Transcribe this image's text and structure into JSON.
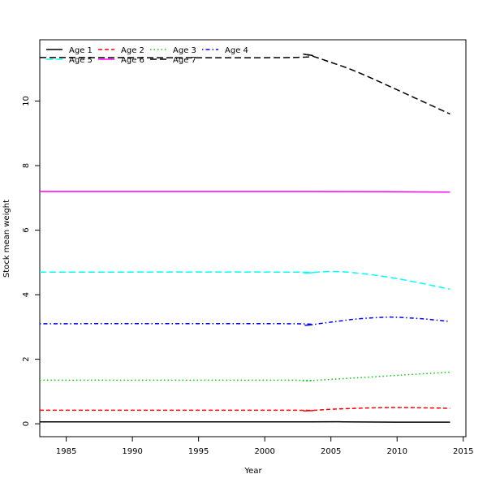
{
  "chart_data": {
    "type": "line",
    "title": "",
    "xlabel": "Year",
    "ylabel": "Stock mean weight",
    "xlim": [
      1983,
      2015
    ],
    "ylim": [
      -0.4,
      11.9
    ],
    "xticks": [
      1985,
      1990,
      1995,
      2000,
      2005,
      2010,
      2015
    ],
    "yticks": [
      0,
      2,
      4,
      6,
      8,
      10
    ],
    "grid": false,
    "legend_position": "top-left",
    "legend_columns": 4,
    "series": [
      {
        "name": "Age 1",
        "color": "#000000",
        "dash": "solid",
        "x": [
          1983,
          2003,
          2006,
          2010,
          2014
        ],
        "y": [
          0.06,
          0.06,
          0.06,
          0.05,
          0.05
        ]
      },
      {
        "name": "Age 2",
        "color": "#ff0000",
        "dash": "dashed",
        "x": [
          1983,
          2002,
          2003,
          2005,
          2007,
          2009,
          2011,
          2014
        ],
        "y": [
          0.42,
          0.42,
          0.4,
          0.45,
          0.48,
          0.5,
          0.5,
          0.48
        ]
      },
      {
        "name": "Age 3",
        "color": "#00cd00",
        "dash": "dotted",
        "x": [
          1983,
          2002,
          2003,
          2006,
          2010,
          2014
        ],
        "y": [
          1.35,
          1.35,
          1.33,
          1.4,
          1.5,
          1.6
        ]
      },
      {
        "name": "Age 4",
        "color": "#0000ff",
        "dash": "dotdash",
        "x": [
          1983,
          2002,
          2003,
          2005,
          2007,
          2009,
          2010,
          2012,
          2014
        ],
        "y": [
          3.1,
          3.1,
          3.05,
          3.15,
          3.25,
          3.3,
          3.3,
          3.25,
          3.17
        ]
      },
      {
        "name": "Age 5",
        "color": "#00ffff",
        "dash": "longdash",
        "x": [
          1983,
          2002,
          2003,
          2005,
          2007,
          2010,
          2014
        ],
        "y": [
          4.7,
          4.7,
          4.67,
          4.72,
          4.67,
          4.5,
          4.17
        ]
      },
      {
        "name": "Age 6",
        "color": "#ff00ff",
        "dash": "solid",
        "x": [
          1983,
          2003,
          2010,
          2014
        ],
        "y": [
          7.2,
          7.2,
          7.19,
          7.18
        ]
      },
      {
        "name": "Age 7",
        "color": "#000000",
        "dash": "longdash2",
        "x": [
          1983,
          2002,
          2003,
          2005,
          2007,
          2010,
          2014
        ],
        "y": [
          11.35,
          11.35,
          11.45,
          11.2,
          10.9,
          10.35,
          9.6
        ]
      }
    ]
  }
}
